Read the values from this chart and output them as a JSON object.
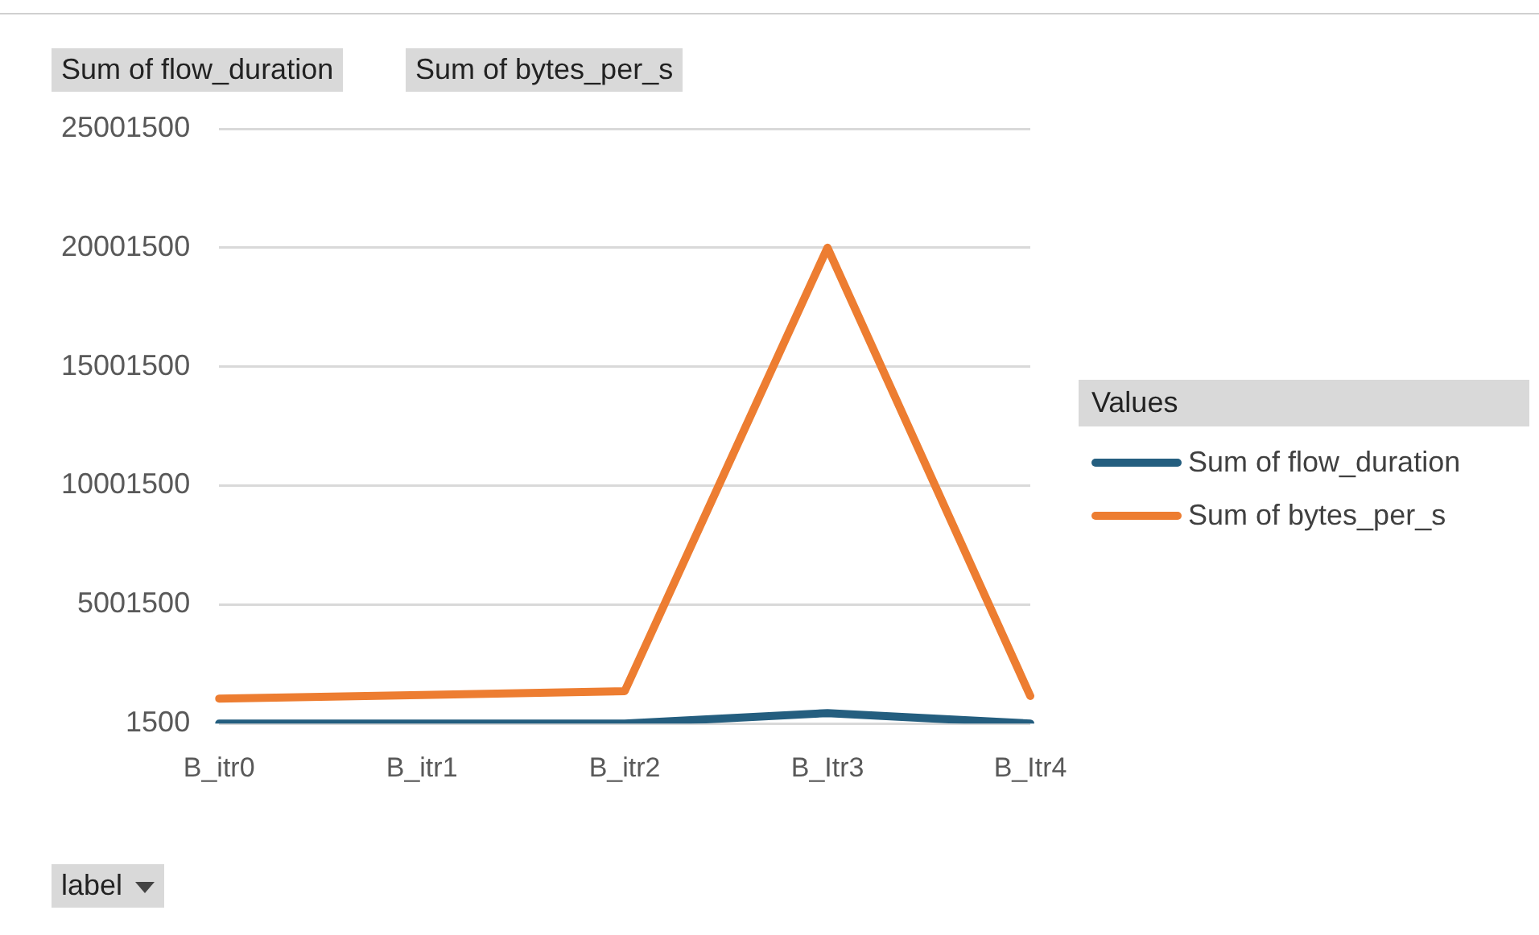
{
  "chart_data": {
    "type": "line",
    "categories": [
      "B_itr0",
      "B_itr1",
      "B_itr2",
      "B_Itr3",
      "B_Itr4"
    ],
    "series": [
      {
        "name": "Sum of flow_duration",
        "color": "#245e7f",
        "values": [
          1500,
          1500,
          1500,
          440000,
          1500
        ]
      },
      {
        "name": "Sum of bytes_per_s",
        "color": "#ed7d31",
        "values": [
          1050000,
          1200000,
          1360000,
          20001500,
          1160000
        ]
      }
    ],
    "ylim": [
      1500,
      25001500
    ],
    "yticks": [
      1500,
      5001500,
      10001500,
      15001500,
      20001500,
      25001500
    ],
    "grid": "y",
    "legend": "right",
    "legend_title": "Values",
    "marker": "none",
    "line_style": "solid",
    "annotations": [
      "Sum of flow_duration",
      "Sum of bytes_per_s",
      "label"
    ]
  }
}
